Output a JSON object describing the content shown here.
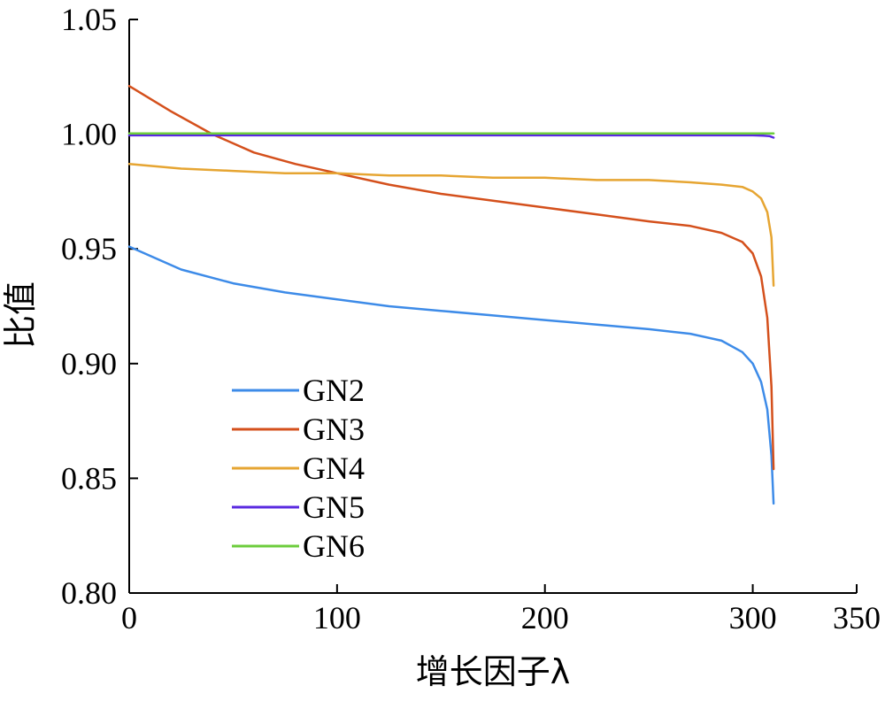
{
  "chart_data": {
    "type": "line",
    "xlabel": "增长因子λ",
    "ylabel": "比值",
    "xlim": [
      0,
      350
    ],
    "ylim": [
      0.8,
      1.05
    ],
    "xticks": [
      0,
      100,
      200,
      300,
      350
    ],
    "xtick_labels": [
      "0",
      "100",
      "200",
      "300",
      "350"
    ],
    "yticks": [
      0.8,
      0.85,
      0.9,
      0.95,
      1.0,
      1.05
    ],
    "ytick_labels": [
      "0.80",
      "0.85",
      "0.90",
      "0.95",
      "1.00",
      "1.05"
    ],
    "grid": false,
    "legend_position": "bottom-left",
    "series": [
      {
        "name": "GN2",
        "color": "#3d8be8",
        "x": [
          0,
          25,
          50,
          75,
          100,
          125,
          150,
          175,
          200,
          225,
          250,
          270,
          285,
          295,
          300,
          304,
          307,
          309,
          310
        ],
        "y": [
          0.951,
          0.941,
          0.935,
          0.931,
          0.928,
          0.925,
          0.923,
          0.921,
          0.919,
          0.917,
          0.915,
          0.913,
          0.91,
          0.905,
          0.9,
          0.892,
          0.88,
          0.86,
          0.839
        ]
      },
      {
        "name": "GN3",
        "color": "#d4501c",
        "x": [
          0,
          20,
          40,
          60,
          80,
          100,
          125,
          150,
          175,
          200,
          225,
          250,
          270,
          285,
          295,
          300,
          304,
          307,
          309,
          310
        ],
        "y": [
          1.021,
          1.01,
          1.0,
          0.992,
          0.987,
          0.983,
          0.978,
          0.974,
          0.971,
          0.968,
          0.965,
          0.962,
          0.96,
          0.957,
          0.953,
          0.948,
          0.938,
          0.92,
          0.89,
          0.854
        ]
      },
      {
        "name": "GN4",
        "color": "#e6a532",
        "x": [
          0,
          25,
          50,
          75,
          100,
          125,
          150,
          175,
          200,
          225,
          250,
          270,
          285,
          295,
          300,
          304,
          307,
          309,
          310
        ],
        "y": [
          0.987,
          0.985,
          0.984,
          0.983,
          0.983,
          0.982,
          0.982,
          0.981,
          0.981,
          0.98,
          0.98,
          0.979,
          0.978,
          0.977,
          0.975,
          0.972,
          0.966,
          0.955,
          0.934
        ]
      },
      {
        "name": "GN5",
        "color": "#5a2ae0",
        "x": [
          0,
          50,
          100,
          150,
          200,
          250,
          300,
          305,
          308,
          310
        ],
        "y": [
          0.9995,
          0.9995,
          0.9995,
          0.9995,
          0.9995,
          0.9995,
          0.9995,
          0.9994,
          0.9992,
          0.9985
        ]
      },
      {
        "name": "GN6",
        "color": "#6ccd3c",
        "x": [
          0,
          50,
          100,
          150,
          200,
          250,
          300,
          310
        ],
        "y": [
          1.0003,
          1.0003,
          1.0003,
          1.0003,
          1.0003,
          1.0003,
          1.0003,
          1.0003
        ]
      }
    ]
  }
}
